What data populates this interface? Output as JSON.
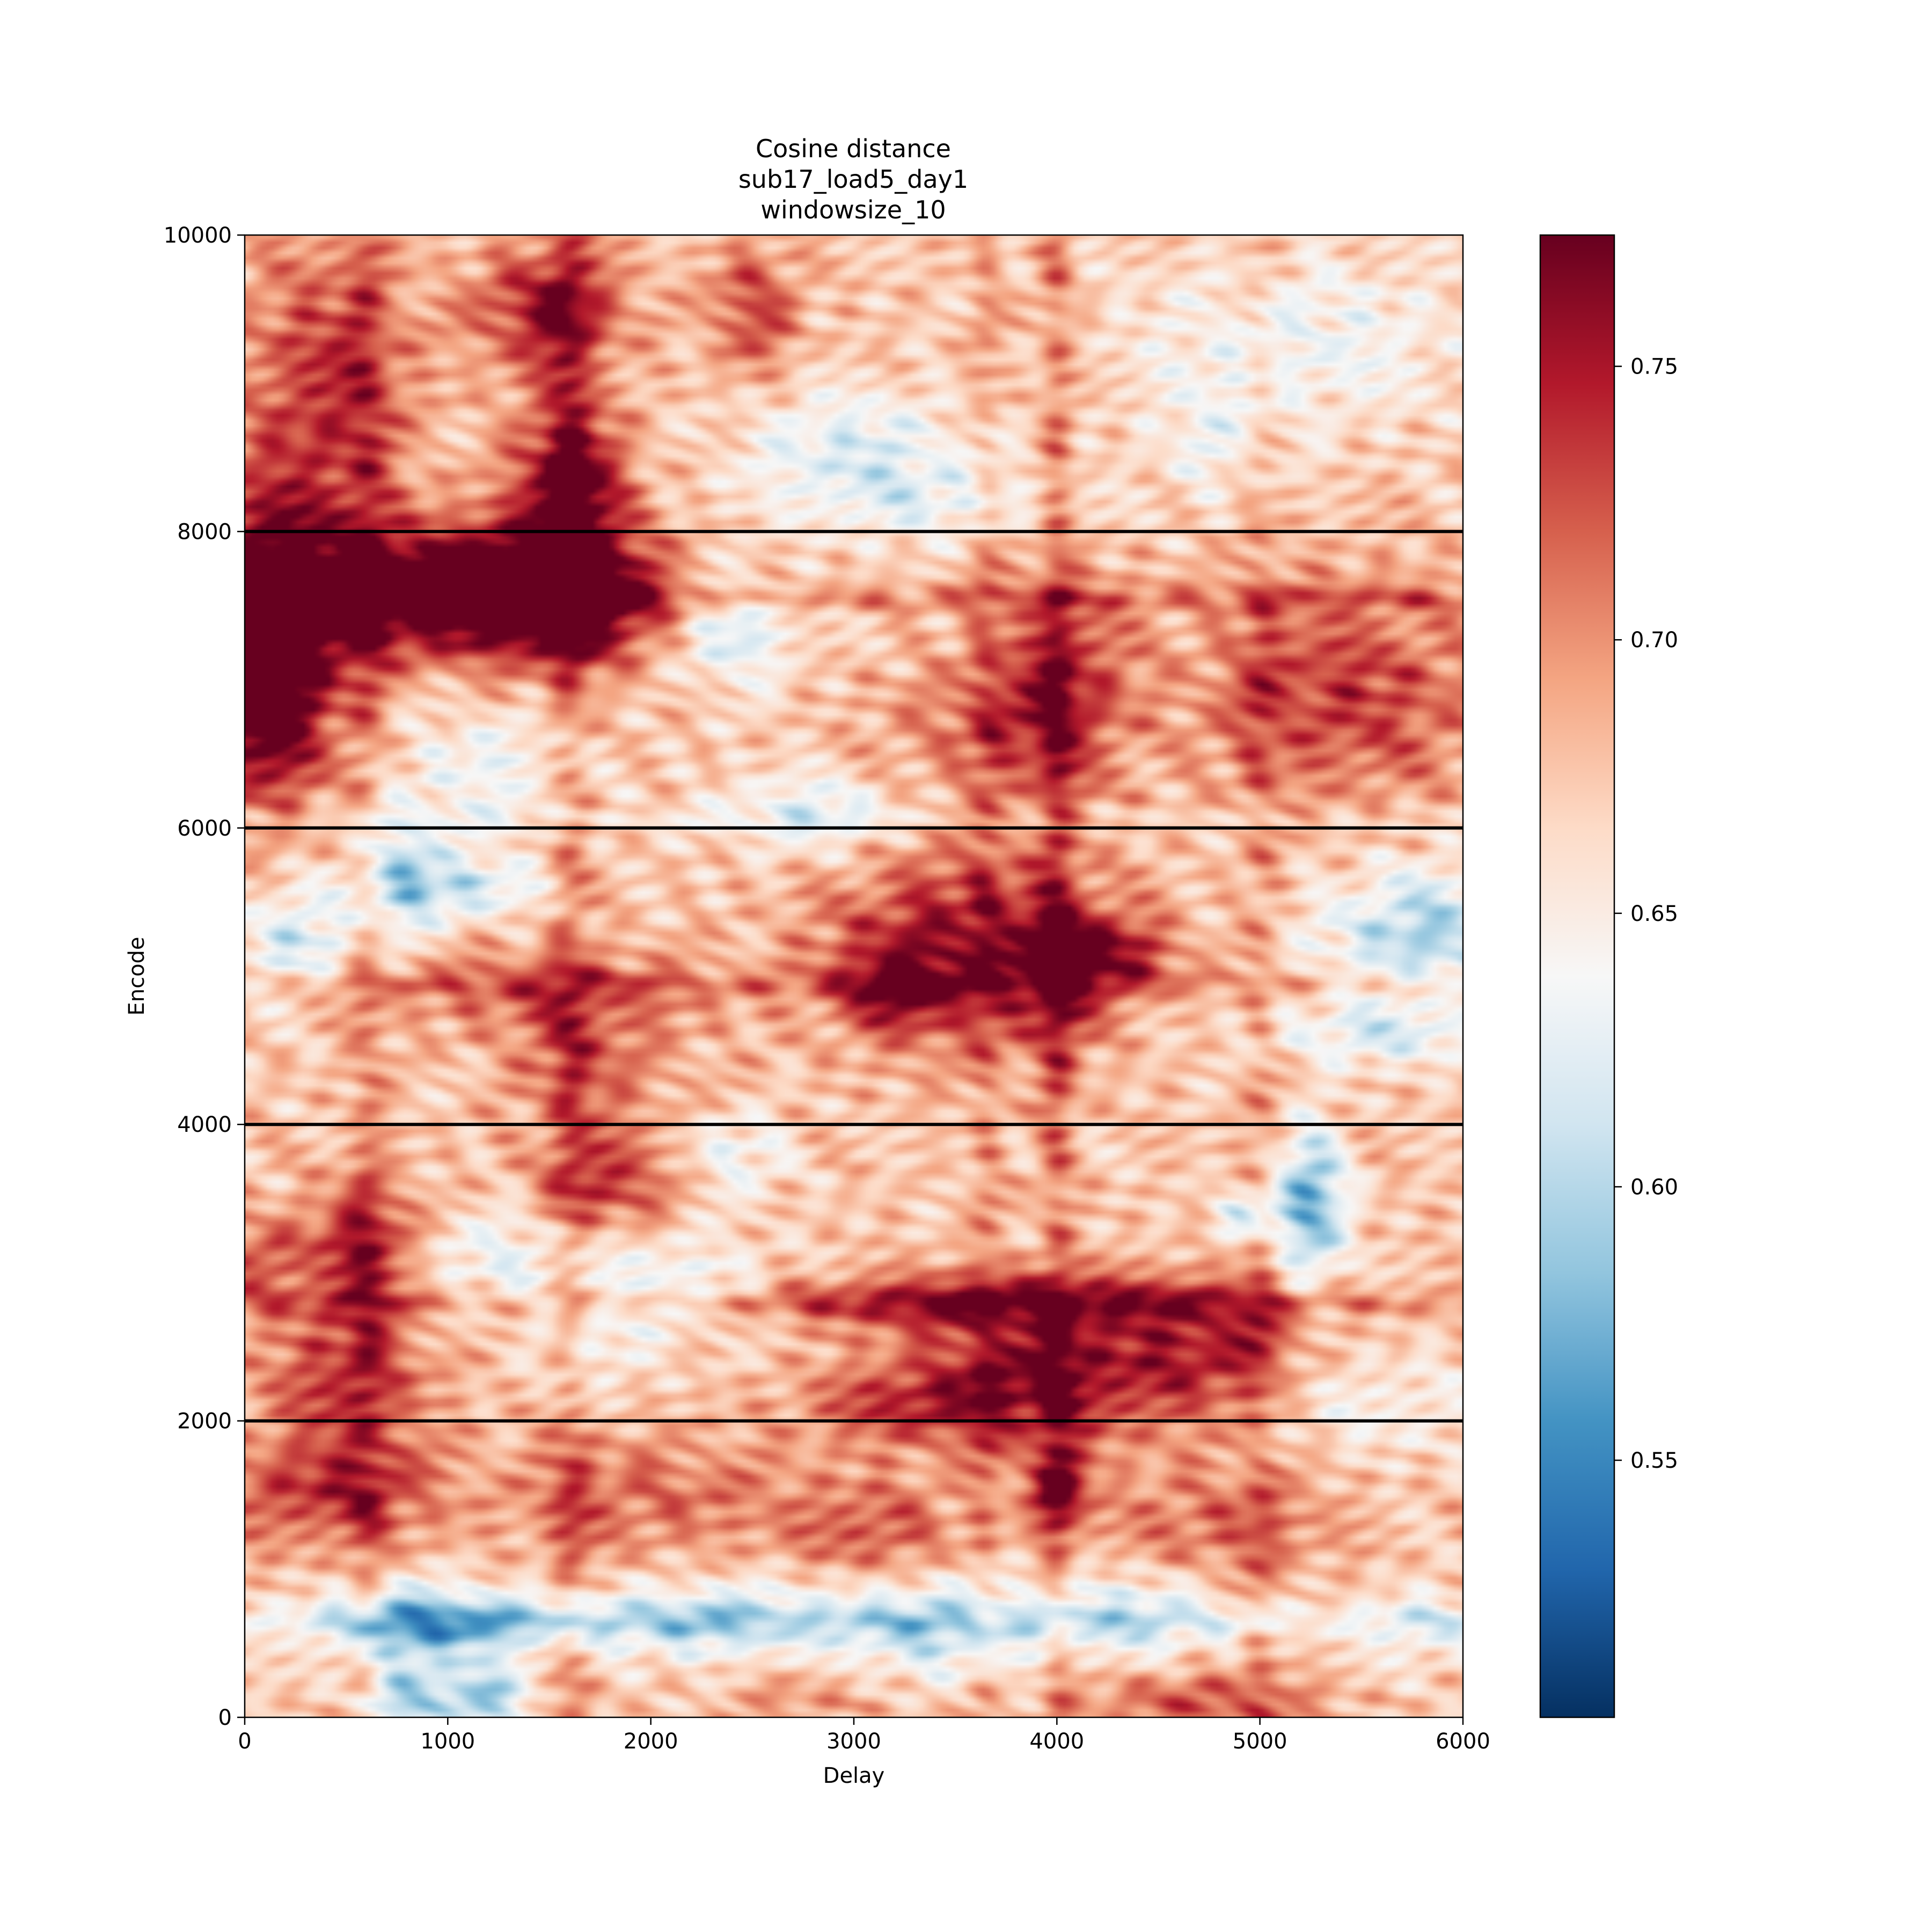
{
  "chart_data": {
    "type": "heatmap",
    "title": [
      "Cosine distance",
      "sub17_load5_day1",
      "windowsize_10"
    ],
    "xlabel": "Delay",
    "ylabel": "Encode",
    "xlim": [
      0,
      6000
    ],
    "ylim": [
      0,
      10000
    ],
    "xticks": [
      0,
      1000,
      2000,
      3000,
      4000,
      5000,
      6000
    ],
    "xtick_labels": [
      "0",
      "1000",
      "2000",
      "3000",
      "4000",
      "5000",
      "6000"
    ],
    "yticks": [
      0,
      2000,
      4000,
      6000,
      8000,
      10000
    ],
    "ytick_labels": [
      "0",
      "2000",
      "4000",
      "6000",
      "8000",
      "10000"
    ],
    "colormap": "RdBu_r",
    "clim": [
      0.503,
      0.774
    ],
    "colorbar_ticks": [
      0.55,
      0.6,
      0.65,
      0.7,
      0.75
    ],
    "colorbar_tick_labels": [
      "0.55",
      "0.60",
      "0.65",
      "0.70",
      "0.75"
    ],
    "hlines": [
      2000,
      4000,
      6000,
      8000
    ],
    "grid": false,
    "blobs": [
      {
        "x": 100,
        "y": 7500,
        "sx": 300,
        "sy": 600,
        "a": 0.1
      },
      {
        "x": 900,
        "y": 7600,
        "sx": 450,
        "sy": 300,
        "a": 0.12
      },
      {
        "x": 1600,
        "y": 7550,
        "sx": 350,
        "sy": 300,
        "a": 0.12
      },
      {
        "x": 1600,
        "y": 8300,
        "sx": 200,
        "sy": 400,
        "a": 0.1
      },
      {
        "x": 1500,
        "y": 9500,
        "sx": 250,
        "sy": 300,
        "a": 0.08
      },
      {
        "x": 100,
        "y": 6800,
        "sx": 200,
        "sy": 500,
        "a": 0.09
      },
      {
        "x": 400,
        "y": 9000,
        "sx": 300,
        "sy": 700,
        "a": 0.06
      },
      {
        "x": 2500,
        "y": 9500,
        "sx": 150,
        "sy": 300,
        "a": 0.06
      },
      {
        "x": 3000,
        "y": 8600,
        "sx": 400,
        "sy": 250,
        "a": -0.05
      },
      {
        "x": 3300,
        "y": 8200,
        "sx": 500,
        "sy": 200,
        "a": -0.04
      },
      {
        "x": 5200,
        "y": 9300,
        "sx": 600,
        "sy": 400,
        "a": -0.04
      },
      {
        "x": 4800,
        "y": 8600,
        "sx": 250,
        "sy": 300,
        "a": -0.03
      },
      {
        "x": 2400,
        "y": 7300,
        "sx": 200,
        "sy": 250,
        "a": -0.06
      },
      {
        "x": 2800,
        "y": 6100,
        "sx": 300,
        "sy": 200,
        "a": -0.05
      },
      {
        "x": 1200,
        "y": 6400,
        "sx": 300,
        "sy": 300,
        "a": -0.04
      },
      {
        "x": 4000,
        "y": 6900,
        "sx": 250,
        "sy": 500,
        "a": 0.07
      },
      {
        "x": 5400,
        "y": 6900,
        "sx": 500,
        "sy": 500,
        "a": 0.06
      },
      {
        "x": 3500,
        "y": 6700,
        "sx": 300,
        "sy": 300,
        "a": 0.03
      },
      {
        "x": 750,
        "y": 5700,
        "sx": 150,
        "sy": 300,
        "a": -0.07
      },
      {
        "x": 1100,
        "y": 5600,
        "sx": 250,
        "sy": 150,
        "a": -0.06
      },
      {
        "x": 250,
        "y": 5250,
        "sx": 200,
        "sy": 250,
        "a": -0.06
      },
      {
        "x": 5800,
        "y": 5300,
        "sx": 350,
        "sy": 300,
        "a": -0.08
      },
      {
        "x": 5600,
        "y": 4600,
        "sx": 400,
        "sy": 150,
        "a": -0.05
      },
      {
        "x": 3500,
        "y": 5200,
        "sx": 450,
        "sy": 450,
        "a": 0.08
      },
      {
        "x": 3200,
        "y": 4900,
        "sx": 200,
        "sy": 200,
        "a": 0.05
      },
      {
        "x": 4300,
        "y": 5150,
        "sx": 200,
        "sy": 200,
        "a": 0.07
      },
      {
        "x": 4000,
        "y": 5000,
        "sx": 150,
        "sy": 400,
        "a": 0.05
      },
      {
        "x": 1500,
        "y": 4900,
        "sx": 600,
        "sy": 200,
        "a": 0.04
      },
      {
        "x": 1700,
        "y": 4400,
        "sx": 300,
        "sy": 300,
        "a": 0.04
      },
      {
        "x": 5250,
        "y": 3450,
        "sx": 120,
        "sy": 350,
        "a": -0.11
      },
      {
        "x": 4900,
        "y": 3400,
        "sx": 100,
        "sy": 120,
        "a": -0.06
      },
      {
        "x": 2400,
        "y": 3800,
        "sx": 200,
        "sy": 200,
        "a": -0.04
      },
      {
        "x": 600,
        "y": 3200,
        "sx": 200,
        "sy": 300,
        "a": 0.07
      },
      {
        "x": 1800,
        "y": 3600,
        "sx": 250,
        "sy": 250,
        "a": 0.06
      },
      {
        "x": 100,
        "y": 3100,
        "sx": 150,
        "sy": 200,
        "a": 0.05
      },
      {
        "x": 3700,
        "y": 2800,
        "sx": 800,
        "sy": 150,
        "a": 0.07
      },
      {
        "x": 4000,
        "y": 2300,
        "sx": 500,
        "sy": 300,
        "a": 0.08
      },
      {
        "x": 3300,
        "y": 2100,
        "sx": 400,
        "sy": 200,
        "a": 0.05
      },
      {
        "x": 4800,
        "y": 2500,
        "sx": 300,
        "sy": 300,
        "a": 0.05
      },
      {
        "x": 1300,
        "y": 3100,
        "sx": 400,
        "sy": 250,
        "a": -0.04
      },
      {
        "x": 2200,
        "y": 2900,
        "sx": 300,
        "sy": 250,
        "a": -0.04
      },
      {
        "x": 1700,
        "y": 2500,
        "sx": 200,
        "sy": 300,
        "a": -0.03
      },
      {
        "x": 5600,
        "y": 2100,
        "sx": 400,
        "sy": 250,
        "a": -0.03
      },
      {
        "x": 500,
        "y": 2300,
        "sx": 300,
        "sy": 400,
        "a": 0.06
      },
      {
        "x": 400,
        "y": 1500,
        "sx": 400,
        "sy": 250,
        "a": 0.06
      },
      {
        "x": 4000,
        "y": 1550,
        "sx": 120,
        "sy": 200,
        "a": 0.08
      },
      {
        "x": 3100,
        "y": 1250,
        "sx": 300,
        "sy": 250,
        "a": 0.05
      },
      {
        "x": 2000,
        "y": 1500,
        "sx": 500,
        "sy": 300,
        "a": 0.04
      },
      {
        "x": 4800,
        "y": 1300,
        "sx": 400,
        "sy": 300,
        "a": 0.04
      },
      {
        "x": 800,
        "y": 600,
        "sx": 300,
        "sy": 200,
        "a": -0.08
      },
      {
        "x": 800,
        "y": 100,
        "sx": 150,
        "sy": 150,
        "a": -0.09
      },
      {
        "x": 1200,
        "y": 150,
        "sx": 150,
        "sy": 150,
        "a": -0.08
      },
      {
        "x": 1400,
        "y": 650,
        "sx": 500,
        "sy": 150,
        "a": -0.06
      },
      {
        "x": 2300,
        "y": 650,
        "sx": 300,
        "sy": 200,
        "a": -0.05
      },
      {
        "x": 3300,
        "y": 600,
        "sx": 500,
        "sy": 250,
        "a": -0.07
      },
      {
        "x": 4400,
        "y": 700,
        "sx": 400,
        "sy": 200,
        "a": -0.05
      },
      {
        "x": 5800,
        "y": 600,
        "sx": 200,
        "sy": 200,
        "a": -0.04
      },
      {
        "x": 4700,
        "y": 100,
        "sx": 400,
        "sy": 150,
        "a": 0.05
      },
      {
        "x": 2800,
        "y": 200,
        "sx": 300,
        "sy": 200,
        "a": 0.03
      }
    ],
    "ridges": [
      {
        "axis": "x",
        "pos": 4000,
        "w": 60,
        "a": 0.035
      },
      {
        "axis": "x",
        "pos": 1600,
        "w": 80,
        "a": 0.03
      },
      {
        "axis": "x",
        "pos": 600,
        "w": 70,
        "a": 0.025
      },
      {
        "axis": "x",
        "pos": 3650,
        "w": 60,
        "a": 0.02
      },
      {
        "axis": "x",
        "pos": 5000,
        "w": 70,
        "a": 0.02
      },
      {
        "axis": "y",
        "pos": 2800,
        "w": 60,
        "a": 0.025
      },
      {
        "axis": "y",
        "pos": 7550,
        "w": 60,
        "a": 0.03
      },
      {
        "axis": "y",
        "pos": 4950,
        "w": 60,
        "a": 0.02
      },
      {
        "axis": "y",
        "pos": 650,
        "w": 80,
        "a": -0.025
      },
      {
        "axis": "y",
        "pos": 6050,
        "w": 60,
        "a": -0.015
      }
    ]
  }
}
